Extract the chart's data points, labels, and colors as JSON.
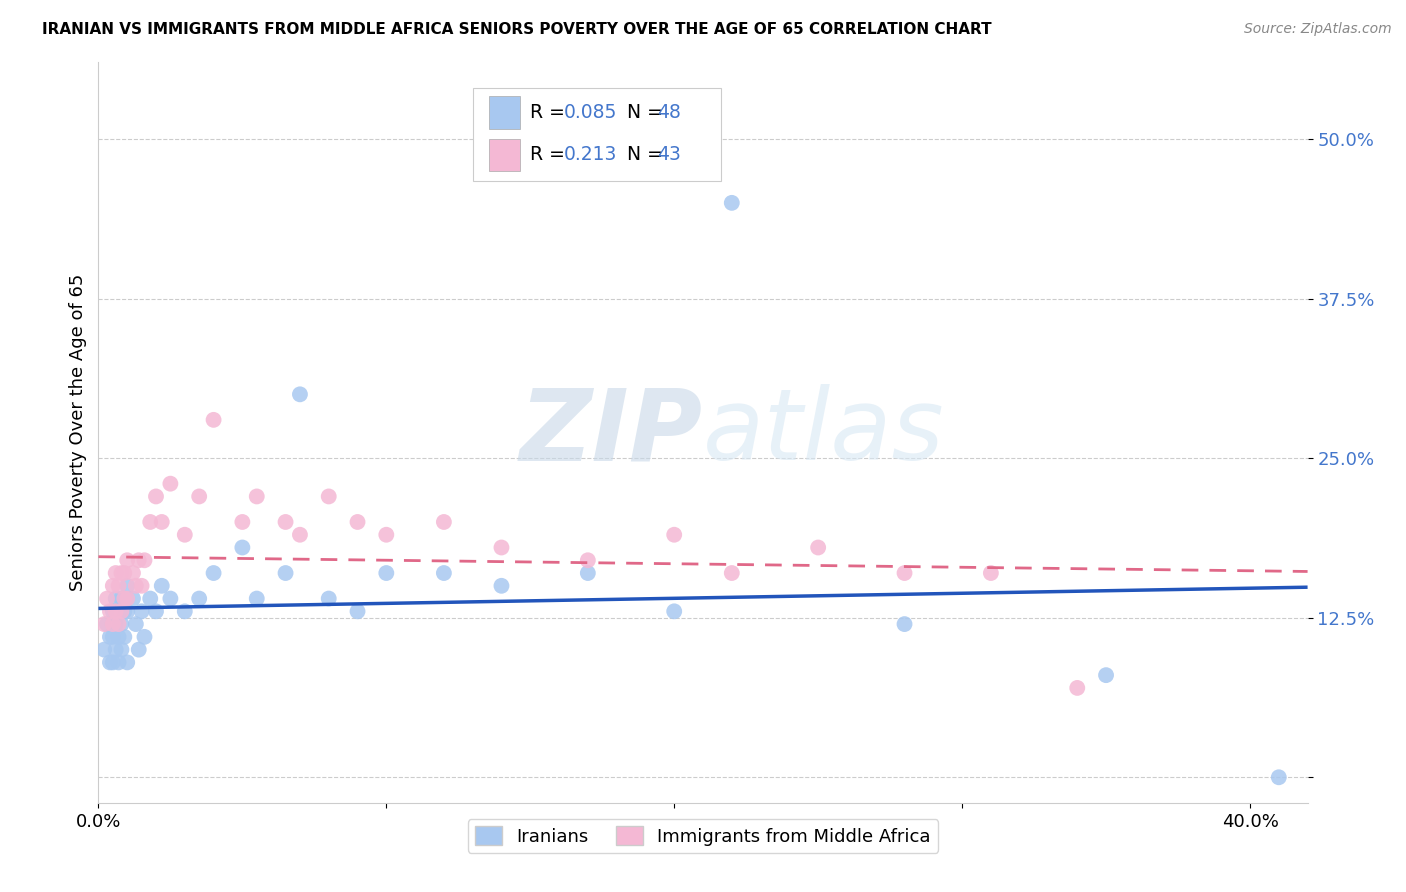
{
  "title": "IRANIAN VS IMMIGRANTS FROM MIDDLE AFRICA SENIORS POVERTY OVER THE AGE OF 65 CORRELATION CHART",
  "source": "Source: ZipAtlas.com",
  "ylabel": "Seniors Poverty Over the Age of 65",
  "xlim": [
    0.0,
    0.42
  ],
  "ylim": [
    -0.02,
    0.56
  ],
  "yticks": [
    0.0,
    0.125,
    0.25,
    0.375,
    0.5
  ],
  "ytick_labels": [
    "",
    "12.5%",
    "25.0%",
    "37.5%",
    "50.0%"
  ],
  "xticks": [
    0.0,
    0.1,
    0.2,
    0.3,
    0.4
  ],
  "xtick_labels": [
    "0.0%",
    "",
    "",
    "",
    "40.0%"
  ],
  "legend_R1": "0.085",
  "legend_N1": "48",
  "legend_R2": "0.213",
  "legend_N2": "43",
  "color_iranian": "#a8c8f0",
  "color_midafrica": "#f4b8d4",
  "color_blue": "#2255bb",
  "color_pink": "#e06888",
  "color_ytick": "#4477cc",
  "watermark_color": "#d8e8f4",
  "iranians_x": [
    0.002,
    0.003,
    0.004,
    0.004,
    0.005,
    0.005,
    0.005,
    0.006,
    0.006,
    0.006,
    0.007,
    0.007,
    0.007,
    0.008,
    0.008,
    0.008,
    0.009,
    0.009,
    0.01,
    0.01,
    0.01,
    0.012,
    0.013,
    0.014,
    0.015,
    0.016,
    0.018,
    0.02,
    0.022,
    0.025,
    0.03,
    0.035,
    0.04,
    0.05,
    0.055,
    0.065,
    0.07,
    0.08,
    0.09,
    0.1,
    0.12,
    0.14,
    0.17,
    0.2,
    0.22,
    0.28,
    0.35,
    0.41
  ],
  "iranians_y": [
    0.1,
    0.12,
    0.11,
    0.09,
    0.13,
    0.11,
    0.09,
    0.14,
    0.12,
    0.1,
    0.13,
    0.11,
    0.09,
    0.14,
    0.12,
    0.1,
    0.13,
    0.11,
    0.15,
    0.13,
    0.09,
    0.14,
    0.12,
    0.1,
    0.13,
    0.11,
    0.14,
    0.13,
    0.15,
    0.14,
    0.13,
    0.14,
    0.16,
    0.18,
    0.14,
    0.16,
    0.3,
    0.14,
    0.13,
    0.16,
    0.16,
    0.15,
    0.16,
    0.13,
    0.45,
    0.12,
    0.08,
    0.0
  ],
  "midafrica_x": [
    0.002,
    0.003,
    0.004,
    0.005,
    0.005,
    0.006,
    0.006,
    0.007,
    0.007,
    0.008,
    0.008,
    0.009,
    0.009,
    0.01,
    0.01,
    0.012,
    0.013,
    0.014,
    0.015,
    0.016,
    0.018,
    0.02,
    0.022,
    0.025,
    0.03,
    0.035,
    0.04,
    0.05,
    0.055,
    0.065,
    0.07,
    0.08,
    0.09,
    0.1,
    0.12,
    0.14,
    0.17,
    0.2,
    0.22,
    0.25,
    0.28,
    0.31,
    0.34
  ],
  "midafrica_y": [
    0.12,
    0.14,
    0.13,
    0.15,
    0.12,
    0.16,
    0.13,
    0.15,
    0.12,
    0.16,
    0.13,
    0.16,
    0.14,
    0.17,
    0.14,
    0.16,
    0.15,
    0.17,
    0.15,
    0.17,
    0.2,
    0.22,
    0.2,
    0.23,
    0.19,
    0.22,
    0.28,
    0.2,
    0.22,
    0.2,
    0.19,
    0.22,
    0.2,
    0.19,
    0.2,
    0.18,
    0.17,
    0.19,
    0.16,
    0.18,
    0.16,
    0.16,
    0.07
  ]
}
